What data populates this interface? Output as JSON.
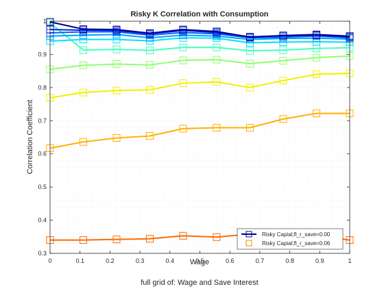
{
  "chart_data": {
    "type": "line",
    "title": "Risky K Correlation with Consumption",
    "xlabel": "Wage",
    "xlabel2": "full grid of: Wage and Save Interest",
    "ylabel": "Correlation Coefficient",
    "xlim": [
      0,
      1
    ],
    "ylim": [
      0.3,
      1.0
    ],
    "xticks": [
      "0",
      "0.1",
      "0.2",
      "0.3",
      "0.4",
      "0.5",
      "0.6",
      "0.7",
      "0.8",
      "0.9",
      "1"
    ],
    "yticks": [
      "0.3",
      "0.4",
      "0.5",
      "0.6",
      "0.7",
      "0.8",
      "0.9",
      "1"
    ],
    "grid": "on (minor dotted)",
    "legend_position": "bottom-right",
    "legend": [
      {
        "label": "Risky Capial;fl_r_save=0.00",
        "color": "#00008f"
      },
      {
        "label": "Risky Capial;fl_r_save=0.06",
        "color": "#ff8000"
      }
    ],
    "x": [
      0,
      0.111,
      0.222,
      0.333,
      0.444,
      0.556,
      0.667,
      0.778,
      0.889,
      1.0
    ],
    "series": [
      {
        "color": "#ff6a00",
        "values": [
          0.34,
          0.34,
          0.342,
          0.344,
          0.353,
          0.349,
          0.358,
          0.363,
          0.354,
          0.34
        ]
      },
      {
        "color": "#ffb000",
        "values": [
          0.617,
          0.636,
          0.648,
          0.654,
          0.676,
          0.679,
          0.679,
          0.705,
          0.722,
          0.722
        ]
      },
      {
        "color": "#f0f000",
        "values": [
          0.769,
          0.785,
          0.791,
          0.793,
          0.813,
          0.817,
          0.8,
          0.821,
          0.84,
          0.843
        ]
      },
      {
        "color": "#90ff70",
        "values": [
          0.855,
          0.867,
          0.871,
          0.868,
          0.882,
          0.884,
          0.872,
          0.881,
          0.89,
          0.895
        ]
      },
      {
        "color": "#40ffc0",
        "values": [
          0.995,
          0.913,
          0.915,
          0.912,
          0.921,
          0.921,
          0.911,
          0.913,
          0.918,
          0.92
        ]
      },
      {
        "color": "#00e0ff",
        "values": [
          0.94,
          0.945,
          0.945,
          0.941,
          0.95,
          0.949,
          0.935,
          0.937,
          0.938,
          0.937
        ]
      },
      {
        "color": "#00a0ff",
        "values": [
          0.955,
          0.958,
          0.96,
          0.95,
          0.958,
          0.955,
          0.945,
          0.948,
          0.949,
          0.946
        ]
      },
      {
        "color": "#0060ff",
        "values": [
          0.965,
          0.968,
          0.968,
          0.958,
          0.966,
          0.962,
          0.95,
          0.952,
          0.955,
          0.95
        ]
      },
      {
        "color": "#0020e0",
        "values": [
          0.975,
          0.973,
          0.972,
          0.962,
          0.972,
          0.966,
          0.953,
          0.956,
          0.958,
          0.952
        ]
      },
      {
        "color": "#00008f",
        "values": [
          0.998,
          0.976,
          0.975,
          0.964,
          0.975,
          0.969,
          0.952,
          0.957,
          0.96,
          0.955
        ]
      }
    ]
  }
}
